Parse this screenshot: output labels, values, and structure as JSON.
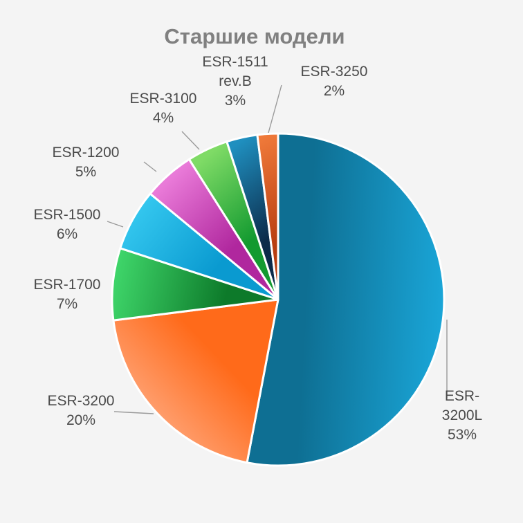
{
  "chart_data": {
    "type": "pie",
    "title": "Старшие модели",
    "slices": [
      {
        "label": [
          "ESR-",
          "3200L"
        ],
        "percent_label": "53%",
        "value": 53,
        "color_a": "#1aa6d8",
        "color_b": "#0e6f93"
      },
      {
        "label": [
          "ESR-3200"
        ],
        "percent_label": "20%",
        "value": 20,
        "color_a": "#ffb08a",
        "color_b": "#ff6a1a"
      },
      {
        "label": [
          "ESR-1700"
        ],
        "percent_label": "7%",
        "value": 7,
        "color_a": "#3fd66a",
        "color_b": "#0d7a2a"
      },
      {
        "label": [
          "ESR-1500"
        ],
        "percent_label": "6%",
        "value": 6,
        "color_a": "#33c6ee",
        "color_b": "#0a9ad0"
      },
      {
        "label": [
          "ESR-1200"
        ],
        "percent_label": "5%",
        "value": 5,
        "color_a": "#e97ad8",
        "color_b": "#b0279e"
      },
      {
        "label": [
          "ESR-3100"
        ],
        "percent_label": "4%",
        "value": 4,
        "color_a": "#7fdb66",
        "color_b": "#139a30"
      },
      {
        "label": [
          "ESR-1511",
          "rev.B"
        ],
        "percent_label": "3%",
        "value": 3,
        "color_a": "#1f8fbf",
        "color_b": "#0c2b4a"
      },
      {
        "label": [
          "ESR-3250"
        ],
        "percent_label": "2%",
        "value": 2,
        "color_a": "#f07a3a",
        "color_b": "#b83d10"
      }
    ]
  }
}
